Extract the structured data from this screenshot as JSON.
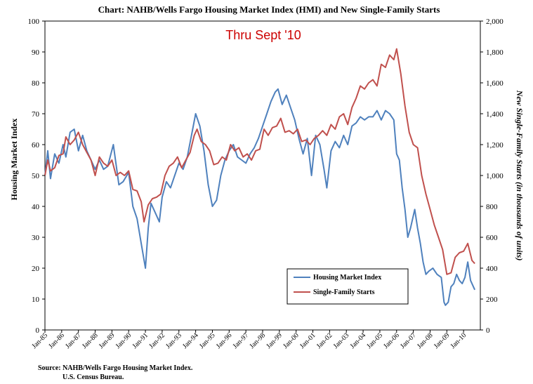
{
  "chart_data": {
    "type": "line",
    "title": "Chart:  NAHB/Wells Fargo Housing Market Index (HMI) and New Single-Family Starts",
    "annotation": "Thru Sept '10",
    "ylabel": "Housing Market Index",
    "y2label": "New Single-Family Starts (in thousands of units)",
    "xlabel": "",
    "ylim": [
      0,
      100
    ],
    "y2lim": [
      0,
      2000
    ],
    "yticks": [
      "0",
      "10",
      "20",
      "30",
      "40",
      "50",
      "60",
      "70",
      "80",
      "90",
      "100"
    ],
    "y2ticks": [
      "0",
      "200",
      "400",
      "600",
      "800",
      "1,000",
      "1,200",
      "1,400",
      "1,600",
      "1,800",
      "2,000"
    ],
    "xticks": [
      "Jan-85",
      "Jan-86",
      "Jan-87",
      "Jan-88",
      "Jan-89",
      "Jan-90",
      "Jan-91",
      "Jan-92",
      "Jan-93",
      "Jan-94",
      "Jan-95",
      "Jan-96",
      "Jan-97",
      "Jan-98",
      "Jan-99",
      "Jan-00",
      "Jan-01",
      "Jan-02",
      "Jan-03",
      "Jan-04",
      "Jan-05",
      "Jan-06",
      "Jan-07",
      "Jan-08",
      "Jan-09",
      "Jan-10"
    ],
    "x_start": "Jan-85",
    "x_end": "Sep-10",
    "grid": false,
    "legend_position": "bottom-right",
    "source": [
      "Source: NAHB/Wells Fargo  Housing Market Index.",
      "U.S. Census Bureau."
    ],
    "series": [
      {
        "name": "Housing Market Index",
        "axis": "left",
        "color": "#4f81bd",
        "points": [
          [
            "Jan-85",
            50
          ],
          [
            "Mar-85",
            58
          ],
          [
            "May-85",
            49
          ],
          [
            "Aug-85",
            57
          ],
          [
            "Nov-85",
            54
          ],
          [
            "Feb-86",
            60
          ],
          [
            "Apr-86",
            56
          ],
          [
            "Jul-86",
            64
          ],
          [
            "Oct-86",
            65
          ],
          [
            "Jan-87",
            58
          ],
          [
            "Apr-87",
            63
          ],
          [
            "Jul-87",
            58
          ],
          [
            "Oct-87",
            55
          ],
          [
            "Jan-88",
            52
          ],
          [
            "Apr-88",
            55
          ],
          [
            "Jul-88",
            52
          ],
          [
            "Oct-88",
            53
          ],
          [
            "Feb-89",
            60
          ],
          [
            "Jun-89",
            47
          ],
          [
            "Sep-89",
            48
          ],
          [
            "Jan-90",
            51
          ],
          [
            "Apr-90",
            40
          ],
          [
            "Jul-90",
            36
          ],
          [
            "Oct-90",
            28
          ],
          [
            "Jan-91",
            20
          ],
          [
            "Mar-91",
            33
          ],
          [
            "May-91",
            41
          ],
          [
            "Aug-91",
            38
          ],
          [
            "Nov-91",
            35
          ],
          [
            "Jan-92",
            43
          ],
          [
            "Apr-92",
            48
          ],
          [
            "Jul-92",
            46
          ],
          [
            "Oct-92",
            50
          ],
          [
            "Jan-93",
            54
          ],
          [
            "Apr-93",
            52
          ],
          [
            "Jul-93",
            56
          ],
          [
            "Oct-93",
            63
          ],
          [
            "Jan-94",
            70
          ],
          [
            "Apr-94",
            66
          ],
          [
            "Jul-94",
            58
          ],
          [
            "Oct-94",
            47
          ],
          [
            "Jan-95",
            40
          ],
          [
            "Apr-95",
            42
          ],
          [
            "Jul-95",
            50
          ],
          [
            "Oct-95",
            55
          ],
          [
            "Jan-96",
            58
          ],
          [
            "Apr-96",
            60
          ],
          [
            "Jul-96",
            56
          ],
          [
            "Oct-96",
            55
          ],
          [
            "Jan-97",
            54
          ],
          [
            "Apr-97",
            57
          ],
          [
            "Jul-97",
            59
          ],
          [
            "Oct-97",
            62
          ],
          [
            "Jan-98",
            66
          ],
          [
            "Apr-98",
            70
          ],
          [
            "Jul-98",
            74
          ],
          [
            "Oct-98",
            77
          ],
          [
            "Dec-98",
            78
          ],
          [
            "Mar-99",
            73
          ],
          [
            "Jun-99",
            76
          ],
          [
            "Sep-99",
            72
          ],
          [
            "Dec-99",
            68
          ],
          [
            "Mar-00",
            62
          ],
          [
            "Jun-00",
            57
          ],
          [
            "Sep-00",
            62
          ],
          [
            "Dec-00",
            50
          ],
          [
            "Mar-01",
            63
          ],
          [
            "Jun-01",
            60
          ],
          [
            "Sep-01",
            52
          ],
          [
            "Nov-01",
            46
          ],
          [
            "Feb-02",
            58
          ],
          [
            "May-02",
            61
          ],
          [
            "Aug-02",
            59
          ],
          [
            "Nov-02",
            63
          ],
          [
            "Feb-03",
            60
          ],
          [
            "May-03",
            66
          ],
          [
            "Aug-03",
            67
          ],
          [
            "Nov-03",
            69
          ],
          [
            "Feb-04",
            68
          ],
          [
            "May-04",
            69
          ],
          [
            "Aug-04",
            69
          ],
          [
            "Nov-04",
            71
          ],
          [
            "Feb-05",
            68
          ],
          [
            "May-05",
            71
          ],
          [
            "Aug-05",
            70
          ],
          [
            "Nov-05",
            68
          ],
          [
            "Jan-06",
            57
          ],
          [
            "Mar-06",
            55
          ],
          [
            "May-06",
            46
          ],
          [
            "Jul-06",
            39
          ],
          [
            "Sep-06",
            30
          ],
          [
            "Nov-06",
            33
          ],
          [
            "Feb-07",
            39
          ],
          [
            "Apr-07",
            33
          ],
          [
            "Jun-07",
            28
          ],
          [
            "Aug-07",
            22
          ],
          [
            "Oct-07",
            18
          ],
          [
            "Dec-07",
            19
          ],
          [
            "Mar-08",
            20
          ],
          [
            "Jun-08",
            18
          ],
          [
            "Sep-08",
            17
          ],
          [
            "Nov-08",
            9
          ],
          [
            "Dec-08",
            8
          ],
          [
            "Feb-09",
            9
          ],
          [
            "Apr-09",
            14
          ],
          [
            "Jun-09",
            15
          ],
          [
            "Aug-09",
            18
          ],
          [
            "Oct-09",
            16
          ],
          [
            "Dec-09",
            15
          ],
          [
            "Feb-10",
            17
          ],
          [
            "Apr-10",
            22
          ],
          [
            "Jun-10",
            16
          ],
          [
            "Sep-10",
            13
          ]
        ]
      },
      {
        "name": "Single-Family Starts",
        "axis": "right",
        "color": "#c0504d",
        "points": [
          [
            "Jan-85",
            1000
          ],
          [
            "Mar-85",
            1100
          ],
          [
            "May-85",
            1030
          ],
          [
            "Aug-85",
            1050
          ],
          [
            "Nov-85",
            1130
          ],
          [
            "Feb-86",
            1140
          ],
          [
            "Apr-86",
            1250
          ],
          [
            "Jul-86",
            1200
          ],
          [
            "Oct-86",
            1230
          ],
          [
            "Jan-87",
            1280
          ],
          [
            "Apr-87",
            1200
          ],
          [
            "Jul-87",
            1150
          ],
          [
            "Oct-87",
            1100
          ],
          [
            "Jan-88",
            1000
          ],
          [
            "Apr-88",
            1120
          ],
          [
            "Jul-88",
            1080
          ],
          [
            "Oct-88",
            1060
          ],
          [
            "Jan-89",
            1100
          ],
          [
            "Apr-89",
            1000
          ],
          [
            "Jul-89",
            1020
          ],
          [
            "Oct-89",
            1000
          ],
          [
            "Jan-90",
            1030
          ],
          [
            "Apr-90",
            910
          ],
          [
            "Jul-90",
            900
          ],
          [
            "Oct-90",
            830
          ],
          [
            "Dec-90",
            700
          ],
          [
            "Mar-91",
            810
          ],
          [
            "Jun-91",
            850
          ],
          [
            "Sep-91",
            860
          ],
          [
            "Dec-91",
            880
          ],
          [
            "Mar-92",
            1000
          ],
          [
            "Jun-92",
            1060
          ],
          [
            "Sep-92",
            1080
          ],
          [
            "Dec-92",
            1120
          ],
          [
            "Mar-93",
            1050
          ],
          [
            "Jun-93",
            1100
          ],
          [
            "Sep-93",
            1150
          ],
          [
            "Dec-93",
            1260
          ],
          [
            "Feb-94",
            1300
          ],
          [
            "May-94",
            1220
          ],
          [
            "Aug-94",
            1200
          ],
          [
            "Nov-94",
            1160
          ],
          [
            "Feb-95",
            1070
          ],
          [
            "May-95",
            1080
          ],
          [
            "Aug-95",
            1120
          ],
          [
            "Nov-95",
            1100
          ],
          [
            "Feb-96",
            1200
          ],
          [
            "May-96",
            1160
          ],
          [
            "Aug-96",
            1180
          ],
          [
            "Nov-96",
            1120
          ],
          [
            "Feb-97",
            1140
          ],
          [
            "May-97",
            1100
          ],
          [
            "Aug-97",
            1160
          ],
          [
            "Nov-97",
            1170
          ],
          [
            "Feb-98",
            1300
          ],
          [
            "May-98",
            1260
          ],
          [
            "Aug-98",
            1310
          ],
          [
            "Nov-98",
            1320
          ],
          [
            "Feb-99",
            1370
          ],
          [
            "May-99",
            1280
          ],
          [
            "Aug-99",
            1290
          ],
          [
            "Nov-99",
            1270
          ],
          [
            "Feb-00",
            1300
          ],
          [
            "May-00",
            1220
          ],
          [
            "Aug-00",
            1230
          ],
          [
            "Nov-00",
            1200
          ],
          [
            "Feb-01",
            1240
          ],
          [
            "May-01",
            1260
          ],
          [
            "Aug-01",
            1290
          ],
          [
            "Nov-01",
            1260
          ],
          [
            "Feb-02",
            1330
          ],
          [
            "May-02",
            1300
          ],
          [
            "Aug-02",
            1380
          ],
          [
            "Nov-02",
            1400
          ],
          [
            "Feb-03",
            1330
          ],
          [
            "May-03",
            1440
          ],
          [
            "Aug-03",
            1500
          ],
          [
            "Nov-03",
            1580
          ],
          [
            "Feb-04",
            1560
          ],
          [
            "May-04",
            1600
          ],
          [
            "Aug-04",
            1620
          ],
          [
            "Nov-04",
            1580
          ],
          [
            "Feb-05",
            1720
          ],
          [
            "May-05",
            1700
          ],
          [
            "Aug-05",
            1780
          ],
          [
            "Nov-05",
            1750
          ],
          [
            "Jan-06",
            1820
          ],
          [
            "Apr-06",
            1660
          ],
          [
            "Jul-06",
            1450
          ],
          [
            "Oct-06",
            1280
          ],
          [
            "Jan-07",
            1200
          ],
          [
            "Apr-07",
            1180
          ],
          [
            "Jul-07",
            1000
          ],
          [
            "Oct-07",
            880
          ],
          [
            "Jan-08",
            780
          ],
          [
            "Apr-08",
            680
          ],
          [
            "Jul-08",
            600
          ],
          [
            "Oct-08",
            520
          ],
          [
            "Jan-09",
            360
          ],
          [
            "Apr-09",
            370
          ],
          [
            "Jul-09",
            470
          ],
          [
            "Oct-09",
            500
          ],
          [
            "Jan-10",
            510
          ],
          [
            "Apr-10",
            560
          ],
          [
            "Jul-10",
            450
          ],
          [
            "Sep-10",
            430
          ]
        ]
      }
    ]
  }
}
